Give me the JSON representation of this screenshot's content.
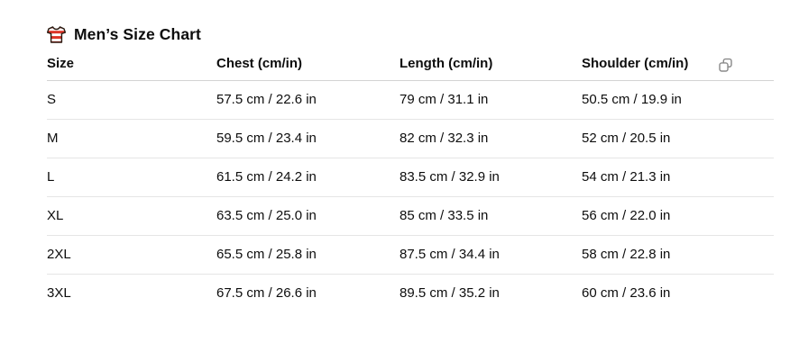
{
  "header": {
    "title": "Men’s Size Chart",
    "icon": "striped-shirt-icon"
  },
  "table": {
    "columns": [
      "Size",
      "Chest (cm/in)",
      "Length (cm/in)",
      "Shoulder (cm/in)"
    ],
    "rows": [
      {
        "size": "S",
        "chest": "57.5 cm / 22.6 in",
        "length": "79 cm / 31.1 in",
        "shoulder": "50.5 cm / 19.9 in"
      },
      {
        "size": "M",
        "chest": "59.5 cm / 23.4 in",
        "length": "82 cm / 32.3 in",
        "shoulder": "52 cm / 20.5 in"
      },
      {
        "size": "L",
        "chest": "61.5 cm / 24.2 in",
        "length": "83.5 cm / 32.9 in",
        "shoulder": "54 cm / 21.3 in"
      },
      {
        "size": "XL",
        "chest": "63.5 cm / 25.0 in",
        "length": "85 cm / 33.5 in",
        "shoulder": "56 cm / 22.0 in"
      },
      {
        "size": "2XL",
        "chest": "65.5 cm / 25.8 in",
        "length": "87.5 cm / 34.4 in",
        "shoulder": "58 cm / 22.8 in"
      },
      {
        "size": "3XL",
        "chest": "67.5 cm / 26.6 in",
        "length": "89.5 cm / 35.2 in",
        "shoulder": "60 cm / 23.6 in"
      }
    ],
    "copy_button": "copy-icon"
  },
  "colors": {
    "text": "#0d0d0d",
    "header_border": "#d3d3d3",
    "row_border": "#e5e5e5",
    "copy_icon_gray": "#8a8a8a",
    "shirt_red": "#dd3528",
    "shirt_outline": "#2b1b12"
  }
}
